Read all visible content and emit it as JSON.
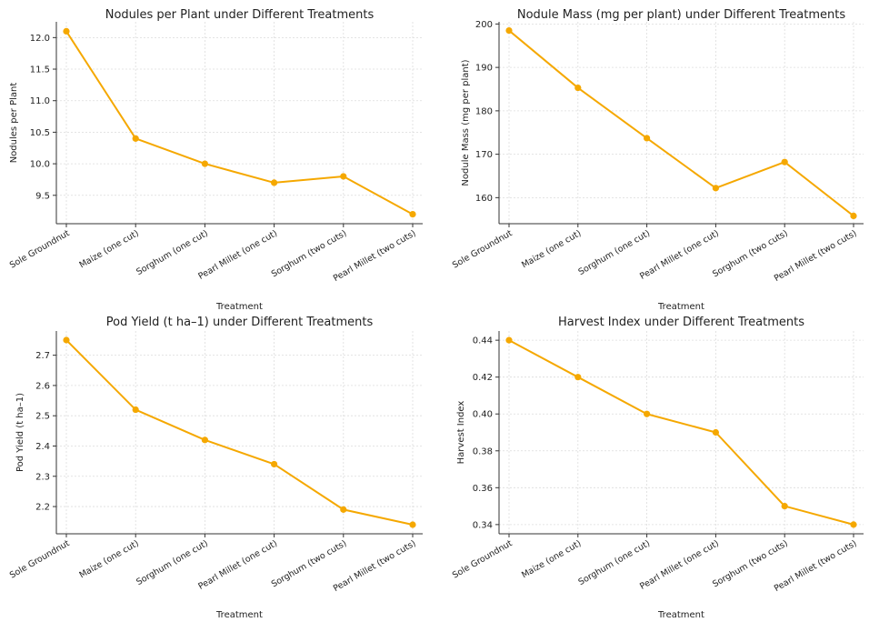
{
  "chart_data": [
    {
      "type": "line",
      "title": "Nodules per Plant under Different Treatments",
      "xlabel": "Treatment",
      "ylabel": "Nodules per Plant",
      "categories": [
        "Sole Groundnut",
        "Maize (one cut)",
        "Sorghum (one cut)",
        "Pearl Millet (one cut)",
        "Sorghum (two cuts)",
        "Pearl Millet (two cuts)"
      ],
      "values": [
        12.1,
        10.4,
        10.0,
        9.7,
        9.8,
        9.2
      ],
      "ylim": [
        9.05,
        12.25
      ],
      "yticks": [
        9.5,
        10.0,
        10.5,
        11.0,
        11.5,
        12.0
      ],
      "ytick_labels": [
        "9.5",
        "10.0",
        "10.5",
        "11.0",
        "11.5",
        "12.0"
      ],
      "grid": true,
      "color": "#F5A800"
    },
    {
      "type": "line",
      "title": "Nodule Mass (mg per plant) under Different Treatments",
      "xlabel": "Treatment",
      "ylabel": "Nodule Mass (mg per plant)",
      "categories": [
        "Sole Groundnut",
        "Maize (one cut)",
        "Sorghum (one cut)",
        "Pearl Millet (one cut)",
        "Sorghum (two cuts)",
        "Pearl Millet (two cuts)"
      ],
      "values": [
        198.5,
        185.3,
        173.7,
        162.2,
        168.2,
        155.8
      ],
      "ylim": [
        154,
        200.5
      ],
      "yticks": [
        160,
        170,
        180,
        190,
        200
      ],
      "ytick_labels": [
        "160",
        "170",
        "180",
        "190",
        "200"
      ],
      "grid": true,
      "color": "#F5A800"
    },
    {
      "type": "line",
      "title": "Pod Yield (t ha–1) under Different Treatments",
      "xlabel": "Treatment",
      "ylabel": "Pod Yield (t ha–1)",
      "categories": [
        "Sole Groundnut",
        "Maize (one cut)",
        "Sorghum (one cut)",
        "Pearl Millet (one cut)",
        "Sorghum (two cuts)",
        "Pearl Millet (two cuts)"
      ],
      "values": [
        2.75,
        2.52,
        2.42,
        2.34,
        2.19,
        2.14
      ],
      "ylim": [
        2.11,
        2.78
      ],
      "yticks": [
        2.2,
        2.3,
        2.4,
        2.5,
        2.6,
        2.7
      ],
      "ytick_labels": [
        "2.2",
        "2.3",
        "2.4",
        "2.5",
        "2.6",
        "2.7"
      ],
      "grid": true,
      "color": "#F5A800"
    },
    {
      "type": "line",
      "title": "Harvest Index under Different Treatments",
      "xlabel": "Treatment",
      "ylabel": "Harvest Index",
      "categories": [
        "Sole Groundnut",
        "Maize (one cut)",
        "Sorghum (one cut)",
        "Pearl Millet (one cut)",
        "Sorghum (two cuts)",
        "Pearl Millet (two cuts)"
      ],
      "values": [
        0.44,
        0.42,
        0.4,
        0.39,
        0.35,
        0.34
      ],
      "ylim": [
        0.335,
        0.445
      ],
      "yticks": [
        0.34,
        0.36,
        0.38,
        0.4,
        0.42,
        0.44
      ],
      "ytick_labels": [
        "0.34",
        "0.36",
        "0.38",
        "0.40",
        "0.42",
        "0.44"
      ],
      "grid": true,
      "color": "#F5A800"
    }
  ]
}
